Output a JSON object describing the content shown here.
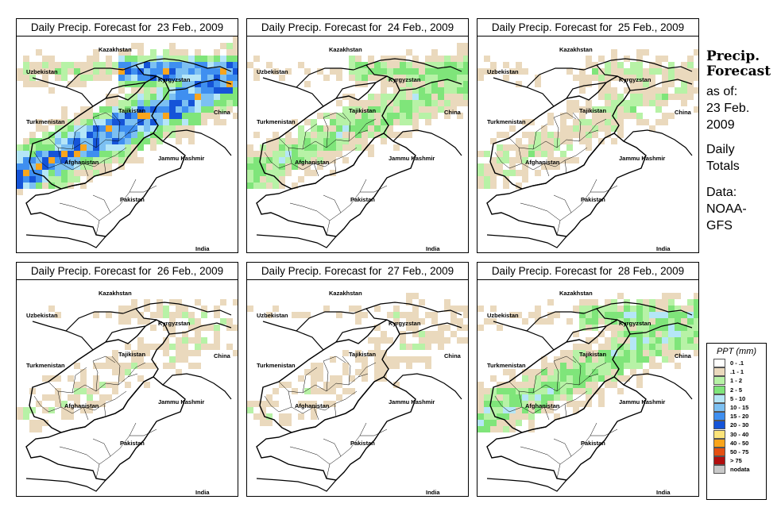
{
  "panels": [
    {
      "title": "Daily Precip. Forecast for  23 Feb., 2009",
      "intensity": 1.0
    },
    {
      "title": "Daily Precip. Forecast for  24 Feb., 2009",
      "intensity": 0.55
    },
    {
      "title": "Daily Precip. Forecast for  25 Feb., 2009",
      "intensity": 0.4
    },
    {
      "title": "Daily Precip. Forecast for  26 Feb., 2009",
      "intensity": 0.3
    },
    {
      "title": "Daily Precip. Forecast for  27 Feb., 2009",
      "intensity": 0.28
    },
    {
      "title": "Daily Precip. Forecast for  28 Feb., 2009",
      "intensity": 0.6
    }
  ],
  "map_labels": {
    "kazakhstan": "Kazakhstan",
    "uzbekistan": "Uzbekistan",
    "kyrgyzstan": "Kyrgyzstan",
    "china": "China",
    "tajikistan": "Tajikistan",
    "turkmenistan": "Turkmenistan",
    "jammu_kashmir": "Jammu Kashmir",
    "afghanistan": "Afghanistan",
    "pakistan": "Pakistan",
    "india": "India"
  },
  "sidebar": {
    "title_line1": "Precip.",
    "title_line2": "Forecast",
    "asof_line1": "as of:",
    "asof_line2": "23 Feb.",
    "asof_line3": "2009",
    "daily_line1": "Daily",
    "daily_line2": "Totals",
    "data_line1": "Data:",
    "data_line2": "NOAA-",
    "data_line3": "GFS"
  },
  "legend": {
    "title": "PPT (mm)",
    "items": [
      {
        "label": "0 - .1",
        "color": "#ffffff"
      },
      {
        "label": ".1 - 1",
        "color": "#ead9bd"
      },
      {
        "label": "1 - 2",
        "color": "#b7f2a6"
      },
      {
        "label": "2 - 5",
        "color": "#7fe57a"
      },
      {
        "label": "5 - 10",
        "color": "#b5e6f7"
      },
      {
        "label": "10 - 15",
        "color": "#7cc0f2"
      },
      {
        "label": "15 - 20",
        "color": "#3f8ff0"
      },
      {
        "label": "20 - 30",
        "color": "#1554d8"
      },
      {
        "label": "30 - 40",
        "color": "#fce47a"
      },
      {
        "label": "40 - 50",
        "color": "#f9a51c"
      },
      {
        "label": "50 - 75",
        "color": "#e55012"
      },
      {
        "label": "> 75",
        "color": "#b10e0e"
      },
      {
        "label": "nodata",
        "color": "#c9c9c9"
      }
    ]
  }
}
